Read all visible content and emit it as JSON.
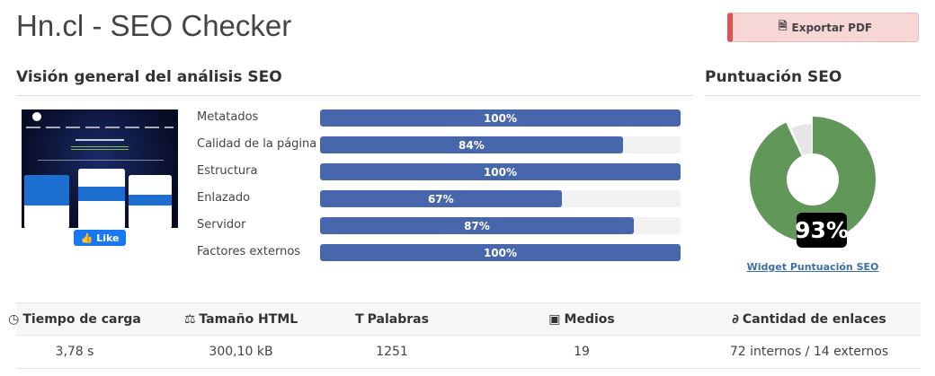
{
  "header": {
    "title": "Hn.cl - SEO Checker",
    "export_label": "Exportar PDF",
    "export_icon": "file-pdf-icon"
  },
  "overview": {
    "title": "Visión general del análisis SEO",
    "like_label": "Like",
    "metrics": [
      {
        "label": "Metatados",
        "value": 100,
        "text": "100%"
      },
      {
        "label": "Calidad de la página",
        "value": 84,
        "text": "84%"
      },
      {
        "label": "Estructura",
        "value": 100,
        "text": "100%"
      },
      {
        "label": "Enlazado",
        "value": 67,
        "text": "67%"
      },
      {
        "label": "Servidor",
        "value": 87,
        "text": "87%"
      },
      {
        "label": "Factores externos",
        "value": 100,
        "text": "100%"
      }
    ],
    "bar_color": "#4766ac"
  },
  "score": {
    "title": "Puntuación SEO",
    "value": 93,
    "text": "93%",
    "link": "Widget Puntuación SEO",
    "color": "#62975a",
    "rest_color": "#e6e6e6"
  },
  "stats": {
    "headers": [
      {
        "label": "Tiempo de carga",
        "icon": "tachometer-icon",
        "glyph": "◷"
      },
      {
        "label": "Tamaño HTML",
        "icon": "balance-scale-icon",
        "glyph": "⚖"
      },
      {
        "label": "Palabras",
        "icon": "text-height-icon",
        "glyph": "T"
      },
      {
        "label": "Medios",
        "icon": "image-icon",
        "glyph": "▣"
      },
      {
        "label": "Cantidad de enlaces",
        "icon": "link-icon",
        "glyph": "∂"
      }
    ],
    "values": [
      "3,78 s",
      "300,10 kB",
      "1251",
      "19",
      "72 internos / 14 externos"
    ]
  }
}
